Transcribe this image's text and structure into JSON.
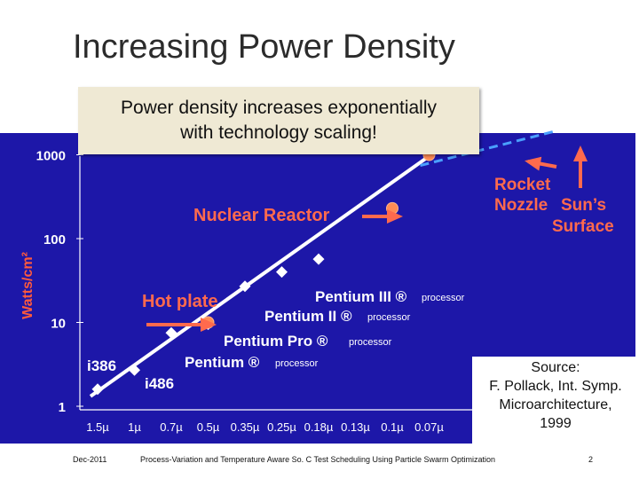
{
  "slide": {
    "title": "Increasing Power Density",
    "callout_line1": "Power density increases exponentially",
    "callout_line2": "with technology scaling!",
    "source_lines": [
      "Source:",
      "F. Pollack, Int. Symp.",
      "Microarchitecture,",
      "1999"
    ],
    "footer_date": "Dec-2011",
    "footer_text": "Process-Variation and Temperature Aware So. C Test Scheduling Using Particle Swarm Optimization",
    "page_number": "2"
  },
  "colors": {
    "background": "#1d17a8",
    "marker": "#ffffff",
    "highlight": "#ff6a4d",
    "reference_marker": "#ff8c55",
    "trend_extension": "#4aa0ff",
    "axis_text": "#ffffff",
    "y_label": "#ff5a3d"
  },
  "chart_data": {
    "type": "scatter",
    "ylabel": "Watts/cm²",
    "y_scale": "log",
    "ylim": [
      1,
      1000
    ],
    "y_ticks": [
      1,
      10,
      100,
      1000
    ],
    "categories": [
      "1.5µ",
      "1µ",
      "0.7µ",
      "0.5µ",
      "0.35µ",
      "0.25µ",
      "0.18µ",
      "0.13µ",
      "0.1µ",
      "0.07µ"
    ],
    "processors": [
      {
        "label": "i386",
        "x": "1.5µ",
        "y": 1.6
      },
      {
        "label": "i486",
        "x": "1µ",
        "y": 2.7
      },
      {
        "label": "Pentium ®",
        "suffix": "processor",
        "x": "0.7µ",
        "y": 7.5
      },
      {
        "label": "Pentium Pro ®",
        "suffix": "processor",
        "x": "0.5µ",
        "y": 9.5
      },
      {
        "label": "Pentium II ®",
        "suffix": "processor",
        "x": "0.35µ",
        "y": 27
      },
      {
        "label": "Pentium III ®",
        "suffix": "processor",
        "x": "0.25µ",
        "y": 40
      },
      {
        "label": "",
        "x": "0.18µ",
        "y": 57
      }
    ],
    "references": [
      {
        "label": "Hot plate",
        "x": "0.5µ",
        "y": 10
      },
      {
        "label": "Nuclear Reactor",
        "x": "0.1µ",
        "y": 230
      },
      {
        "label": "Rocket",
        "label2": "Nozzle",
        "x": "0.07µ",
        "y": 1000
      },
      {
        "label": "Sun’s",
        "label2": "Surface"
      }
    ]
  }
}
